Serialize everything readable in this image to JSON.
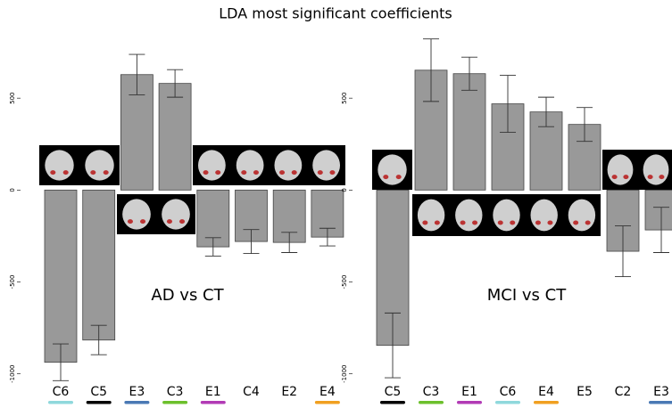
{
  "title": "LDA most significant coefficients",
  "chart_data": [
    {
      "type": "bar",
      "annotation": "AD vs CT",
      "categories": [
        "C6",
        "C5",
        "E3",
        "C3",
        "E1",
        "C4",
        "E2",
        "E4"
      ],
      "values": [
        -937,
        -816,
        628,
        580,
        -309,
        -280,
        -285,
        -256
      ],
      "errors": [
        100,
        80,
        110,
        75,
        50,
        65,
        55,
        48
      ],
      "label_colors": [
        "#8fd8dc",
        "#000000",
        "#4a79b4",
        "#6cc02c",
        "#b23bb5",
        null,
        null,
        "#f0a020"
      ],
      "color": "#999999",
      "ylim": [
        -1050,
        840
      ],
      "yticks": [
        -1000,
        -500,
        0,
        500
      ]
    },
    {
      "type": "bar",
      "annotation": "MCI vs CT",
      "categories": [
        "C5",
        "C3",
        "E1",
        "C6",
        "E4",
        "E5",
        "C2",
        "E3"
      ],
      "values": [
        -845,
        652,
        633,
        469,
        425,
        357,
        -333,
        -217
      ],
      "errors": [
        176,
        170,
        90,
        155,
        80,
        92,
        138,
        123
      ],
      "label_colors": [
        "#000000",
        "#6cc02c",
        "#b23bb5",
        "#8fd8dc",
        "#f0a020",
        null,
        null,
        "#4a79b4"
      ],
      "color": "#999999",
      "ylim": [
        -1050,
        840
      ],
      "yticks": [
        -1000,
        -500,
        0,
        500
      ]
    }
  ]
}
